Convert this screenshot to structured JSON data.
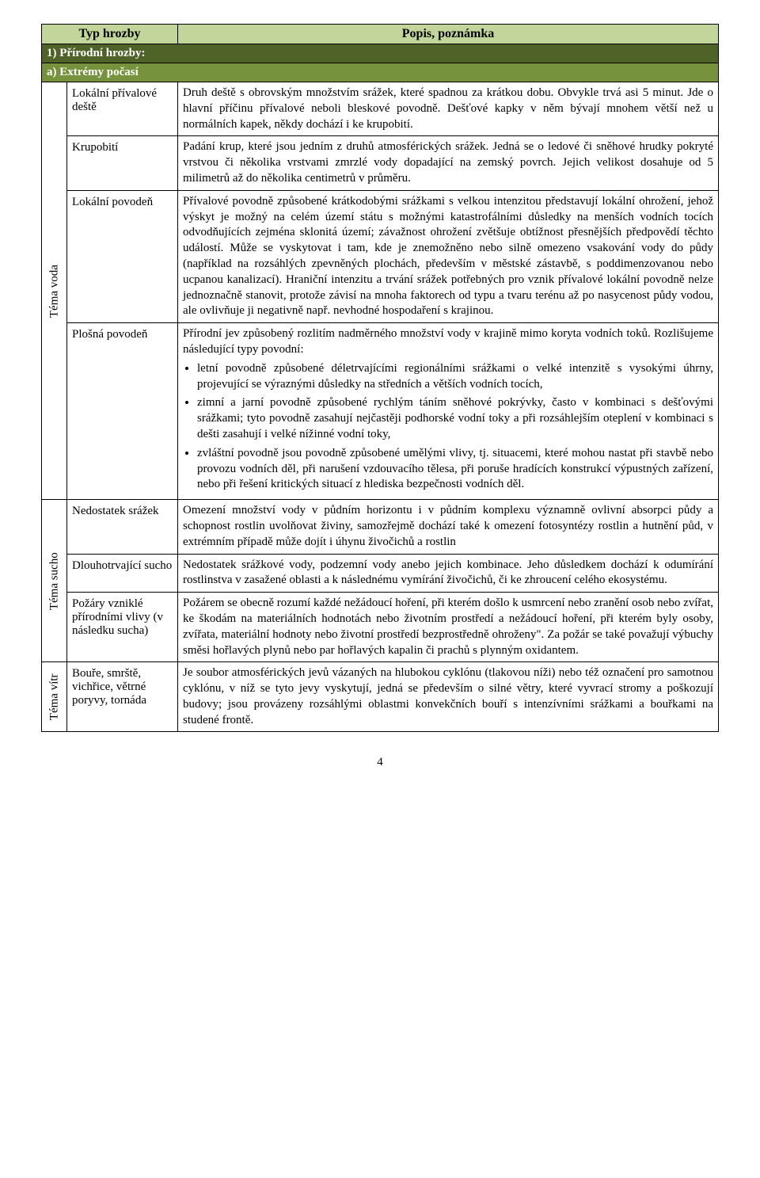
{
  "colors": {
    "header_bg": "#c2d69b",
    "section_bg": "#4f6228",
    "sub_bg": "#76923c",
    "section_text": "#ffffff",
    "border": "#000000",
    "page_bg": "#ffffff",
    "text": "#000000"
  },
  "header": {
    "col1": "Typ hrozby",
    "col2": "Popis, poznámka"
  },
  "section1": {
    "label": "1)  Přírodní hrozby:"
  },
  "sub_a": {
    "label": "a)  Extrémy počasí"
  },
  "theme_voda": {
    "label": "Téma voda"
  },
  "theme_sucho": {
    "label": "Téma sucho"
  },
  "theme_vitr": {
    "label": "Téma vítr"
  },
  "rows": {
    "r1": {
      "label": "Lokální přívalové deště",
      "desc": "Druh deště s obrovským množstvím srážek, které spadnou za krátkou dobu. Obvykle trvá asi 5 minut. Jde o hlavní příčinu přívalové neboli bleskové povodně. Dešťové kapky v něm bývají mnohem větší než u normálních kapek, někdy dochází i ke krupobití."
    },
    "r2": {
      "label": "Krupobití",
      "desc": "Padání krup, které jsou jedním z druhů atmosférických srážek. Jedná se o ledové či sněhové hrudky pokryté vrstvou či několika vrstvami zmrzlé vody dopadající na zemský povrch. Jejich velikost dosahuje od 5 milimetrů až do několika centimetrů v průměru."
    },
    "r3": {
      "label": "Lokální povodeň",
      "desc": "Přívalové povodně způsobené krátkodobými srážkami s velkou intenzitou představují lokální ohrožení, jehož výskyt je možný na celém území státu s možnými katastrofálními důsledky na menších vodních tocích odvodňujících zejména sklonitá území; závažnost ohrožení zvětšuje obtížnost přesnějších předpovědí těchto událostí. Může se vyskytovat i tam, kde je znemožněno nebo silně omezeno vsakování vody do půdy (například na rozsáhlých zpevněných plochách, především v městské zástavbě, s poddimenzovanou nebo ucpanou kanalizací). Hraniční intenzitu a trvání srážek potřebných pro vznik přívalové lokální povodně nelze jednoznačně stanovit, protože závisí na mnoha faktorech od typu a tvaru terénu až po nasycenost půdy vodou, ale ovlivňuje ji negativně např. nevhodné hospodaření s krajinou."
    },
    "r4": {
      "label": "Plošná povodeň",
      "intro": "Přírodní jev způsobený rozlitím nadměrného množství vody v krajině mimo koryta vodních toků. Rozlišujeme následující typy povodní:",
      "b1": "letní povodně způsobené déletrvajícími regionálními srážkami o velké intenzitě s vysokými úhrny, projevující se výraznými důsledky na středních a větších vodních tocích,",
      "b2": "zimní a jarní povodně způsobené rychlým táním sněhové pokrývky, často v kombinaci s dešťovými srážkami; tyto povodně zasahují nejčastěji podhorské vodní toky a při rozsáhlejším oteplení v kombinaci s dešti zasahují i velké nížinné vodní toky,",
      "b3": "zvláštní povodně jsou povodně způsobené umělými vlivy, tj. situacemi, které mohou nastat při stavbě nebo provozu vodních děl, při narušení vzdouvacího tělesa, při poruše hradících konstrukcí výpustných zařízení, nebo při řešení kritických situací z hlediska bezpečnosti vodních děl."
    },
    "r5": {
      "label": "Nedostatek srážek",
      "desc": "Omezení množství vody v půdním horizontu i v půdním komplexu významně ovlivní absorpci půdy a schopnost rostlin uvolňovat živiny, samozřejmě dochází také k omezení fotosyntézy rostlin a hutnění půd, v extrémním případě může dojít i úhynu živočichů a rostlin"
    },
    "r6": {
      "label": "Dlouhotrvající sucho",
      "desc": "Nedostatek srážkové vody, podzemní vody anebo jejich kombinace. Jeho důsledkem dochází k odumírání rostlinstva v zasažené oblasti a k následnému vymírání živočichů, či ke zhroucení celého ekosystému."
    },
    "r7": {
      "label": "Požáry vzniklé přírodními vlivy (v následku sucha)",
      "desc": "Požárem se obecně rozumí každé nežádoucí hoření, při kterém došlo k usmrcení nebo zranění osob nebo zvířat, ke škodám na materiálních hodnotách nebo životním prostředí a nežádoucí hoření, při kterém byly osoby, zvířata, materiální hodnoty nebo životní prostředí bezprostředně ohroženy\". Za požár se také považují výbuchy směsi hořlavých plynů nebo par hořlavých kapalin či prachů s plynným oxidantem."
    },
    "r8": {
      "label": "Bouře, smrště, vichřice, větrné poryvy, tornáda",
      "desc": "Je soubor atmosférických jevů vázaných na hlubokou cyklónu (tlakovou níži) nebo též označení pro samotnou cyklónu, v níž se tyto jevy vyskytují, jedná se především o silné větry, které vyvrací stromy a poškozují budovy; jsou provázeny rozsáhlými oblastmi konvekčních bouří s intenzívními srážkami a bouřkami na studené frontě."
    }
  },
  "page_number": "4"
}
